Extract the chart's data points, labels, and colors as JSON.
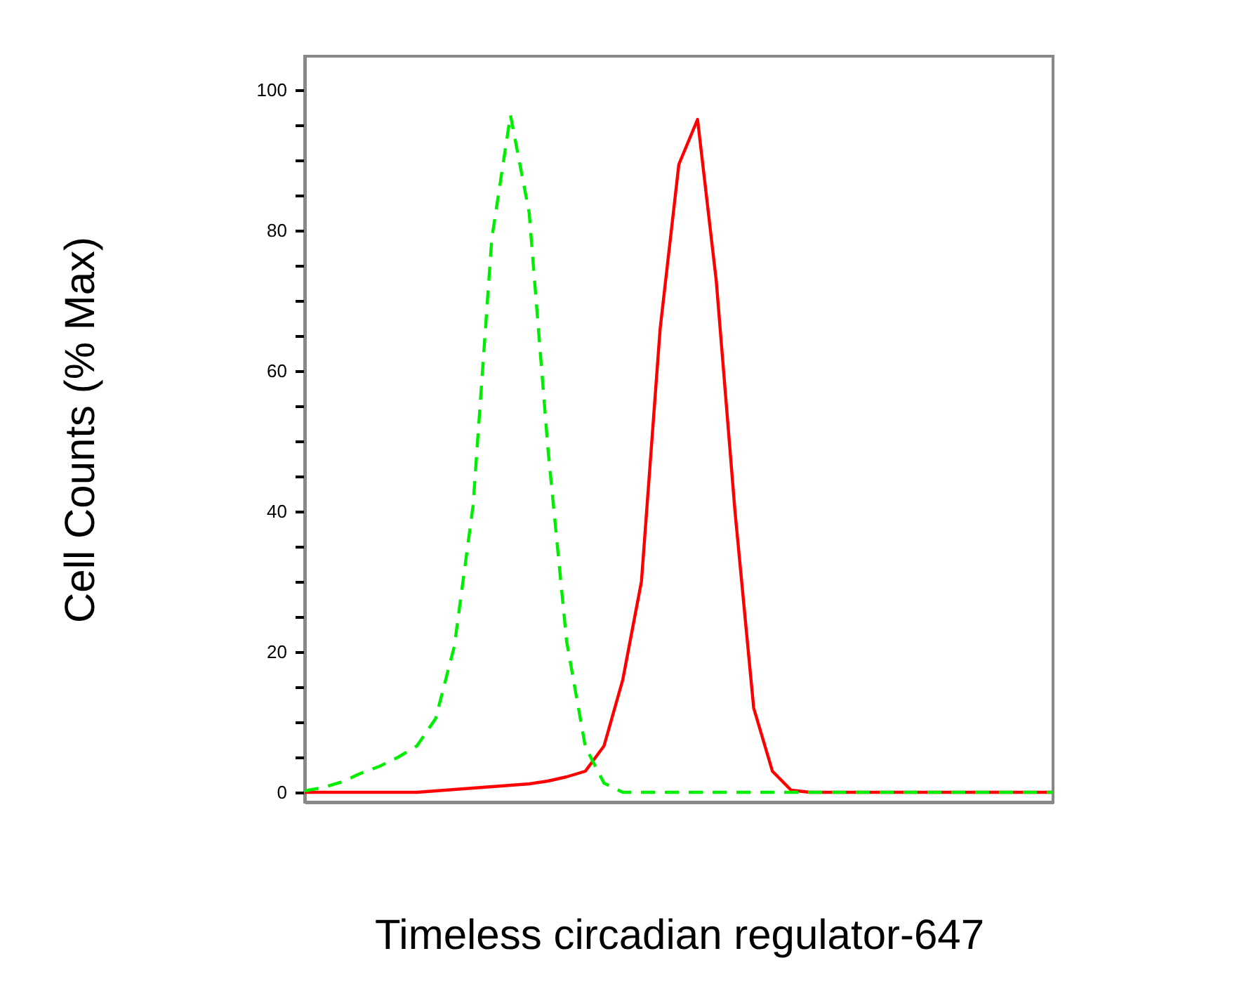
{
  "chart_data": {
    "type": "line",
    "xlabel": "Timeless circadian regulator-647",
    "ylabel": "Cell Counts (% Max)",
    "categories": [
      null,
      null,
      null,
      null,
      null,
      null,
      null,
      null,
      null,
      null,
      null,
      null,
      null,
      null,
      null,
      null,
      null,
      null,
      null,
      null,
      null,
      null,
      null,
      null,
      null,
      null,
      null,
      null,
      null,
      null,
      null,
      null,
      null,
      null,
      null,
      null,
      null,
      null,
      null,
      null,
      null
    ],
    "ylim": [
      -1.4,
      104.8
    ],
    "yticks": [
      0,
      {
        "value": 5,
        "label": null
      },
      {
        "value": 10,
        "label": null
      },
      {
        "value": 15,
        "label": null
      },
      20,
      {
        "value": 25,
        "label": null
      },
      {
        "value": 30,
        "label": null
      },
      {
        "value": 35,
        "label": null
      },
      40,
      {
        "value": 45,
        "label": null
      },
      {
        "value": 50,
        "label": null
      },
      {
        "value": 55,
        "label": null
      },
      60,
      {
        "value": 65,
        "label": null
      },
      {
        "value": 70,
        "label": null
      },
      {
        "value": 75,
        "label": null
      },
      80,
      {
        "value": 85,
        "label": null
      },
      {
        "value": 90,
        "label": null
      },
      {
        "value": 95,
        "label": null
      },
      100
    ],
    "tick_labels": "y",
    "series": [
      {
        "color": "#00ee00",
        "line_style": "dashed",
        "values": [
          0.2,
          0.7,
          1.5,
          2.7,
          3.7,
          5,
          6.6,
          10.5,
          20.8,
          40.8,
          78.8,
          96.4,
          82.5,
          49,
          21.5,
          6.5,
          1.3,
          0,
          0,
          0,
          0,
          0,
          0,
          0,
          0,
          0,
          0,
          0,
          0,
          0,
          0,
          0,
          0,
          0,
          0,
          0,
          0,
          0,
          0,
          0,
          0
        ]
      },
      {
        "color": "#ff0000",
        "line_style": "solid",
        "values": [
          0,
          0,
          0,
          0,
          0,
          0,
          0,
          0.2,
          0.4,
          0.6,
          0.8,
          1,
          1.2,
          1.6,
          2.2,
          3,
          6.6,
          16,
          30,
          66,
          89.4,
          95.8,
          72.8,
          40,
          12,
          3,
          0.3,
          0,
          0,
          0,
          0,
          0,
          0,
          0,
          0,
          0,
          0,
          0,
          0,
          0,
          0
        ]
      }
    ]
  }
}
